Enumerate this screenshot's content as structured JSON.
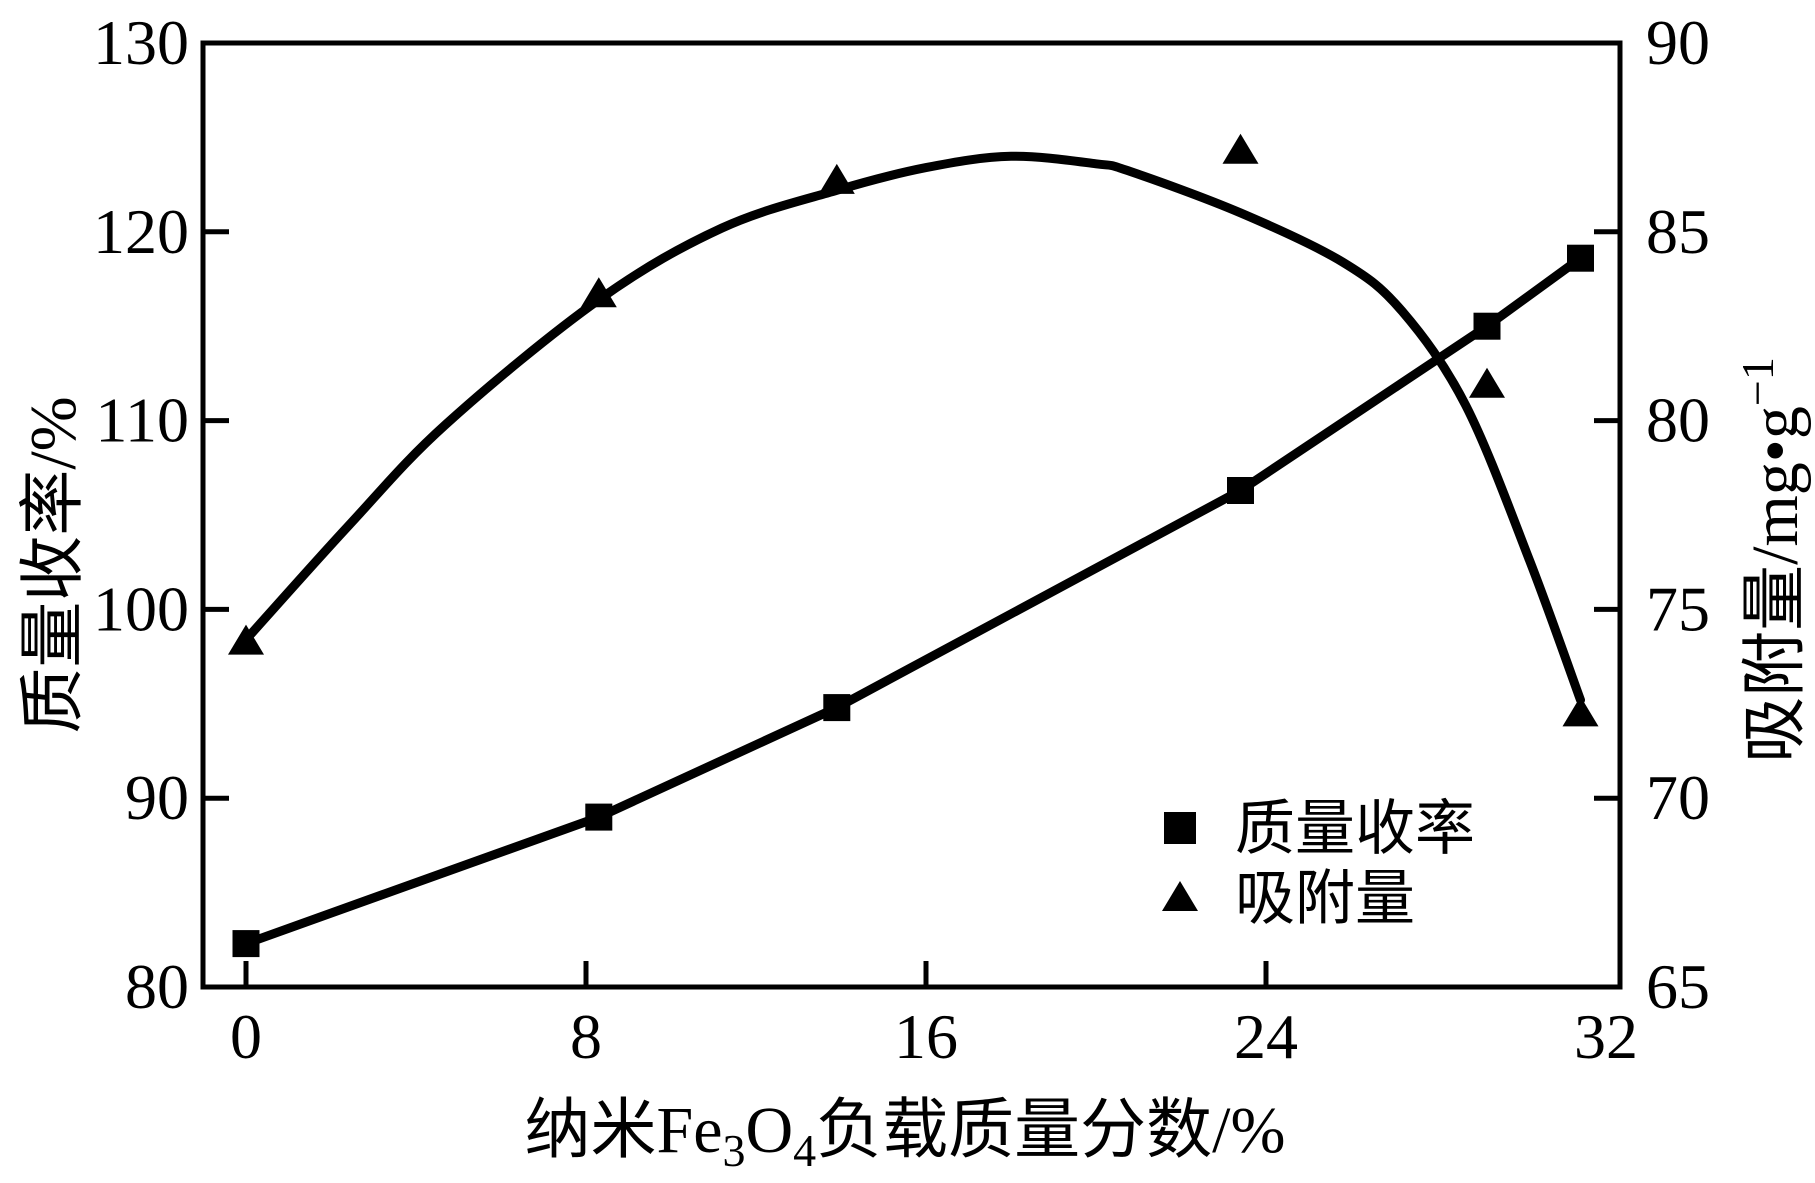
{
  "figure": {
    "background": "#ffffff",
    "ink": "#000000"
  },
  "chart_data": {
    "type": "line",
    "title": "",
    "xlabel_plain": "纳米Fe3O4负载质量分数/%",
    "xlabel_parts": [
      {
        "t": "纳米Fe"
      },
      {
        "t": "3",
        "sub": true
      },
      {
        "t": "O"
      },
      {
        "t": "4",
        "sub": true
      },
      {
        "t": "负载质量分数/%"
      }
    ],
    "ylabel_left": "质量收率/%",
    "ylabel_right_plain": "吸附量/mg·g-1",
    "ylabel_right_parts": [
      {
        "t": "吸附量/mg•g"
      },
      {
        "t": "−1",
        "sup": true
      }
    ],
    "axes": {
      "x": {
        "min": 0,
        "max": 32,
        "ticks": [
          0,
          8,
          16,
          24,
          32
        ]
      },
      "left": {
        "min": 80,
        "max": 130,
        "ticks": [
          80,
          90,
          100,
          110,
          120,
          130
        ]
      },
      "right": {
        "min": 65,
        "max": 90,
        "ticks": [
          65,
          70,
          75,
          80,
          85,
          90
        ]
      }
    },
    "grid": false,
    "legend": {
      "position": "bottom-right",
      "items": [
        "质量收率",
        "吸附量"
      ]
    },
    "series": [
      {
        "name": "质量收率",
        "marker": "square",
        "axis": "left",
        "line": "straight",
        "x": [
          0,
          8.3,
          13.9,
          23.4,
          29.2,
          31.4
        ],
        "y": [
          82.3,
          89.0,
          94.8,
          106.3,
          115.0,
          118.6
        ]
      },
      {
        "name": "吸附量",
        "marker": "triangle",
        "axis": "right",
        "line": "smooth-fit",
        "x": [
          0,
          8.3,
          13.9,
          23.4,
          29.2,
          31.4
        ],
        "y": [
          74.2,
          83.4,
          86.4,
          87.2,
          81.0,
          72.3
        ],
        "trend": [
          [
            0,
            74.2
          ],
          [
            2.4,
            77.2
          ],
          [
            4.7,
            79.9
          ],
          [
            8.3,
            83.2
          ],
          [
            11.2,
            85.1
          ],
          [
            13.9,
            86.1
          ],
          [
            16.0,
            86.7
          ],
          [
            18.0,
            87.0
          ],
          [
            20.0,
            86.8
          ],
          [
            20.8,
            86.6
          ],
          [
            23.4,
            85.5
          ],
          [
            25.8,
            84.2
          ],
          [
            27.2,
            82.9
          ],
          [
            28.7,
            80.4
          ],
          [
            30.2,
            76.3
          ],
          [
            31.4,
            72.6
          ]
        ]
      }
    ]
  }
}
